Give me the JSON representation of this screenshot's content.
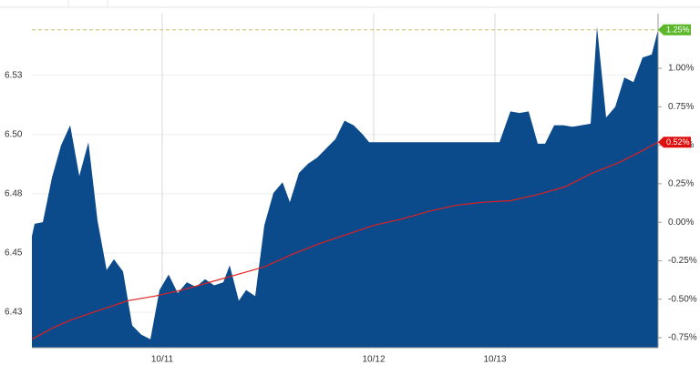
{
  "chart_data": {
    "type": "area",
    "series": [
      {
        "type": "area",
        "color": "#0b4a8b",
        "axis": "y2",
        "x": [
          0,
          3,
          12,
          22,
          32,
          42,
          52,
          62,
          72,
          82,
          90,
          100,
          110,
          120,
          130,
          140,
          150,
          160,
          170,
          180,
          190,
          200,
          210,
          217,
          227,
          235,
          245,
          255,
          265,
          275,
          283,
          293,
          303,
          313,
          323,
          333,
          343,
          353,
          363,
          370,
          380,
          395,
          415,
          435,
          455,
          475,
          495,
          513,
          525,
          535,
          545,
          555,
          563,
          573,
          583,
          593,
          603,
          613,
          620,
          630,
          640,
          650,
          660,
          670,
          680,
          687
        ],
        "values": [
          -0.09,
          -0.01,
          0.0,
          0.29,
          0.5,
          0.63,
          0.3,
          0.52,
          0.01,
          -0.31,
          -0.24,
          -0.32,
          -0.67,
          -0.73,
          -0.76,
          -0.44,
          -0.34,
          -0.46,
          -0.39,
          -0.42,
          -0.37,
          -0.41,
          -0.39,
          -0.28,
          -0.51,
          -0.44,
          -0.48,
          -0.02,
          0.19,
          0.26,
          0.13,
          0.32,
          0.38,
          0.42,
          0.48,
          0.54,
          0.66,
          0.63,
          0.57,
          0.52,
          0.52,
          0.52,
          0.52,
          0.52,
          0.52,
          0.52,
          0.52,
          0.52,
          0.72,
          0.71,
          0.72,
          0.51,
          0.51,
          0.63,
          0.63,
          0.62,
          0.63,
          0.64,
          1.27,
          0.68,
          0.75,
          0.94,
          0.91,
          1.07,
          1.09,
          1.25
        ]
      },
      {
        "type": "line",
        "color": "#e02020",
        "axis": "y2",
        "x": [
          0,
          25,
          45,
          75,
          105,
          135,
          165,
          195,
          225,
          255,
          285,
          315,
          345,
          375,
          405,
          435,
          465,
          495,
          525,
          555,
          585,
          615,
          645,
          665,
          687
        ],
        "values": [
          -0.76,
          -0.68,
          -0.63,
          -0.57,
          -0.51,
          -0.48,
          -0.44,
          -0.39,
          -0.34,
          -0.29,
          -0.21,
          -0.14,
          -0.08,
          -0.02,
          0.02,
          0.07,
          0.11,
          0.13,
          0.14,
          0.18,
          0.23,
          0.32,
          0.39,
          0.45,
          0.52
        ]
      }
    ],
    "xlim": [
      0,
      687
    ],
    "xticks": [
      {
        "value": 143,
        "label": "10/11"
      },
      {
        "value": 375,
        "label": "10/12"
      },
      {
        "value": 508,
        "label": "10/13"
      }
    ],
    "ylim": [
      6.41,
      6.551
    ],
    "yticks": [
      {
        "value": 6.425,
        "label": "6.43"
      },
      {
        "value": 6.45,
        "label": "6.45"
      },
      {
        "value": 6.475,
        "label": "6.48"
      },
      {
        "value": 6.5,
        "label": "6.50"
      },
      {
        "value": 6.525,
        "label": "6.53"
      }
    ],
    "y2lim": [
      -0.815,
      1.355
    ],
    "y2ticks": [
      {
        "value": 1,
        "label": "1.00%"
      },
      {
        "value": 0.75,
        "label": "0.75%"
      },
      {
        "value": 0.5,
        "label": "0.50%"
      },
      {
        "value": 0.25,
        "label": "0.25%"
      },
      {
        "value": 0,
        "label": "0.00%"
      },
      {
        "value": -0.25,
        "label": "-0.25%"
      },
      {
        "value": -0.5,
        "label": "-0.50%"
      },
      {
        "value": -0.75,
        "label": "-0.75%"
      }
    ],
    "grid": true,
    "annotations": [
      {
        "value": 1.25,
        "label": "1.25%",
        "color": "#5cb82a"
      },
      {
        "value": 0.52,
        "label": "0.52%",
        "color": "#e01010"
      }
    ]
  }
}
